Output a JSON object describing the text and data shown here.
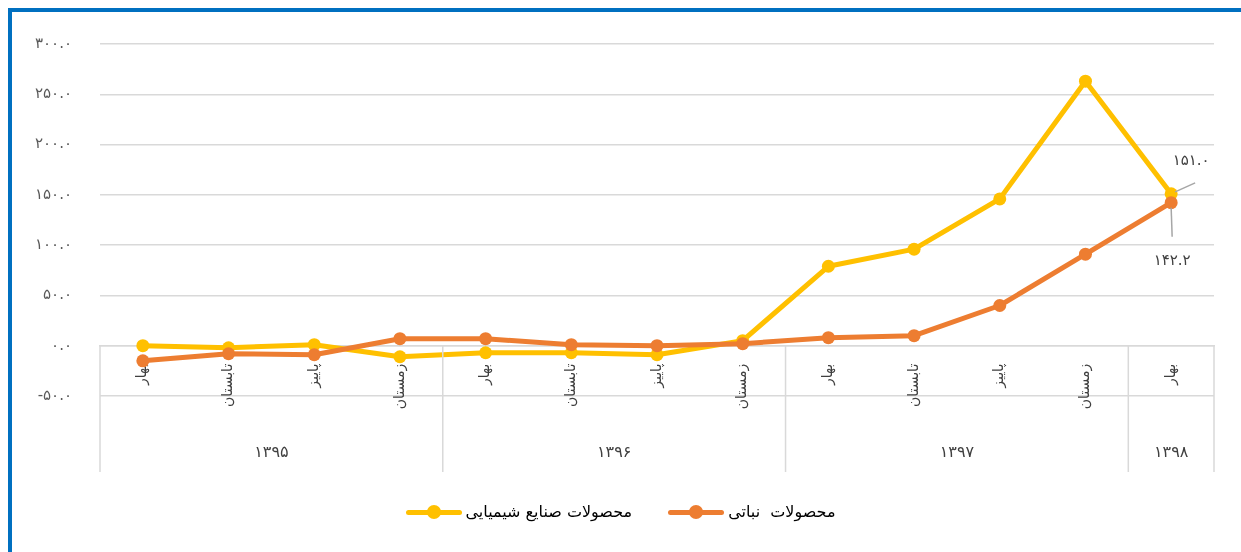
{
  "chart_data": {
    "type": "line",
    "categories": [
      "بهار",
      "تابستان",
      "پاییز",
      "زمستان",
      "بهار",
      "تابستان",
      "پاییز",
      "زمستان",
      "بهار",
      "تابستان",
      "پاییز",
      "زمستان",
      "بهار"
    ],
    "series": [
      {
        "name": "محصولات صنایع شیمیایی",
        "color": "#ffc000",
        "values": [
          0,
          -2,
          1,
          -11,
          -7,
          -7,
          -9,
          5,
          79,
          96,
          146,
          263,
          151.0
        ],
        "value_labels": [
          null,
          null,
          null,
          null,
          null,
          null,
          null,
          null,
          null,
          null,
          null,
          null,
          "۱۵۱.۰"
        ]
      },
      {
        "name": "محصولات  نباتی",
        "color": "#ed7d31",
        "values": [
          -15,
          -8,
          -9,
          7,
          7,
          1,
          0,
          2,
          8,
          10,
          40,
          91,
          142.2
        ],
        "value_labels": [
          null,
          null,
          null,
          null,
          null,
          null,
          null,
          null,
          null,
          null,
          null,
          null,
          "۱۴۲.۲"
        ]
      }
    ],
    "ylim": [
      -50,
      300
    ],
    "yticks": [
      {
        "value": -50,
        "label": "-۵۰.۰"
      },
      {
        "value": 0,
        "label": "۰.۰"
      },
      {
        "value": 50,
        "label": "۵۰.۰"
      },
      {
        "value": 100,
        "label": "۱۰۰.۰"
      },
      {
        "value": 150,
        "label": "۱۵۰.۰"
      },
      {
        "value": 200,
        "label": "۲۰۰.۰"
      },
      {
        "value": 250,
        "label": "۲۵۰.۰"
      },
      {
        "value": 300,
        "label": "۳۰۰.۰"
      }
    ],
    "grid": "y",
    "legend": "bottom",
    "marker": "circle",
    "line_style": "solid",
    "annotations": [
      "۱۳۹۵",
      "۱۳۹۶",
      "۱۳۹۷",
      "۱۳۹۸"
    ]
  }
}
